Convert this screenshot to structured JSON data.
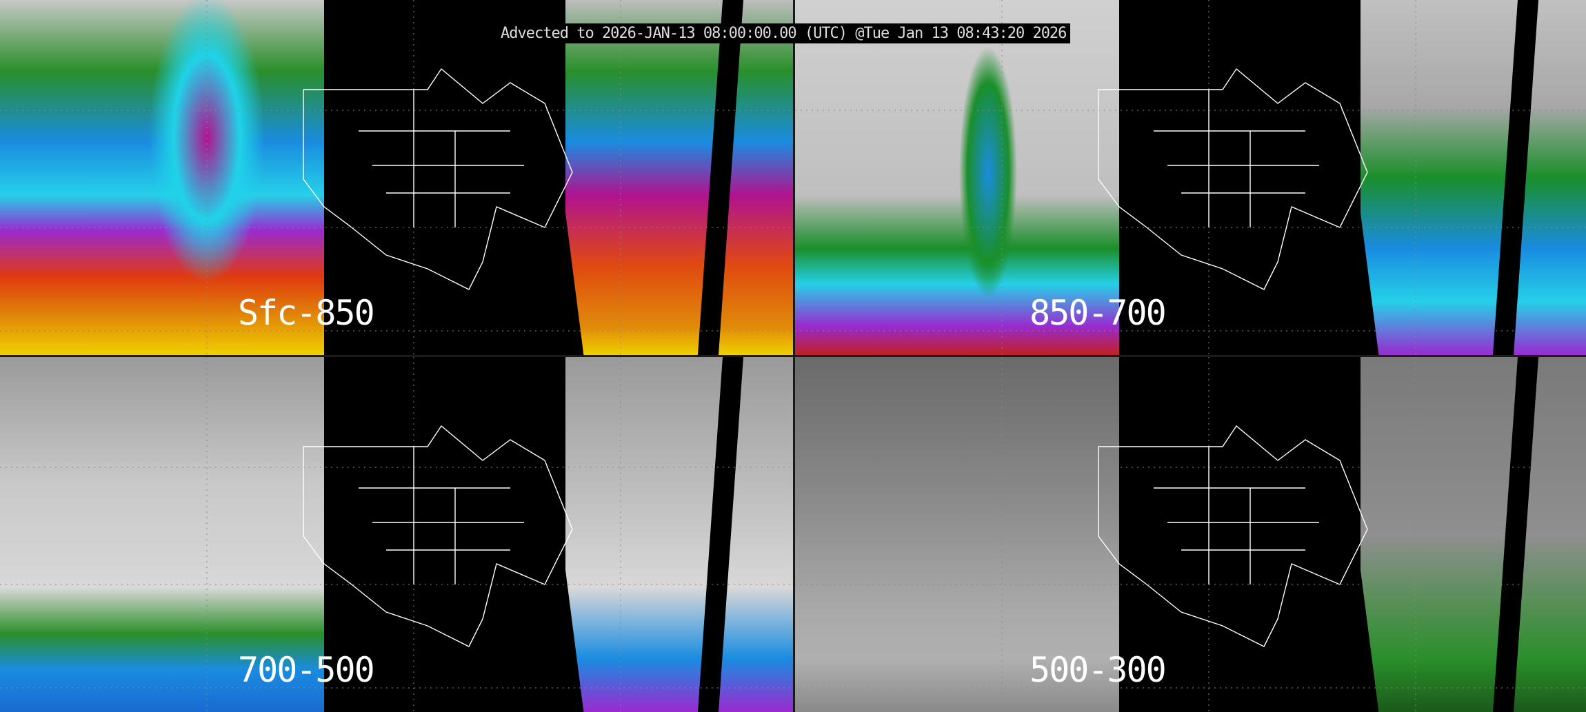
{
  "title": "Advected to 2026-JAN-13 08:00:00.00 (UTC) @Tue Jan 13 08:43:20 2026",
  "panels": [
    {
      "label": "Sfc-850",
      "colormap": "full-color"
    },
    {
      "label": "850-700",
      "colormap": "full-color"
    },
    {
      "label": "700-500",
      "colormap": "gray-green-blue"
    },
    {
      "label": "500-300",
      "colormap": "mostly-gray"
    }
  ],
  "colors": {
    "background": "#000000",
    "coastlines": "#ffffff",
    "text": "#ffffff"
  }
}
